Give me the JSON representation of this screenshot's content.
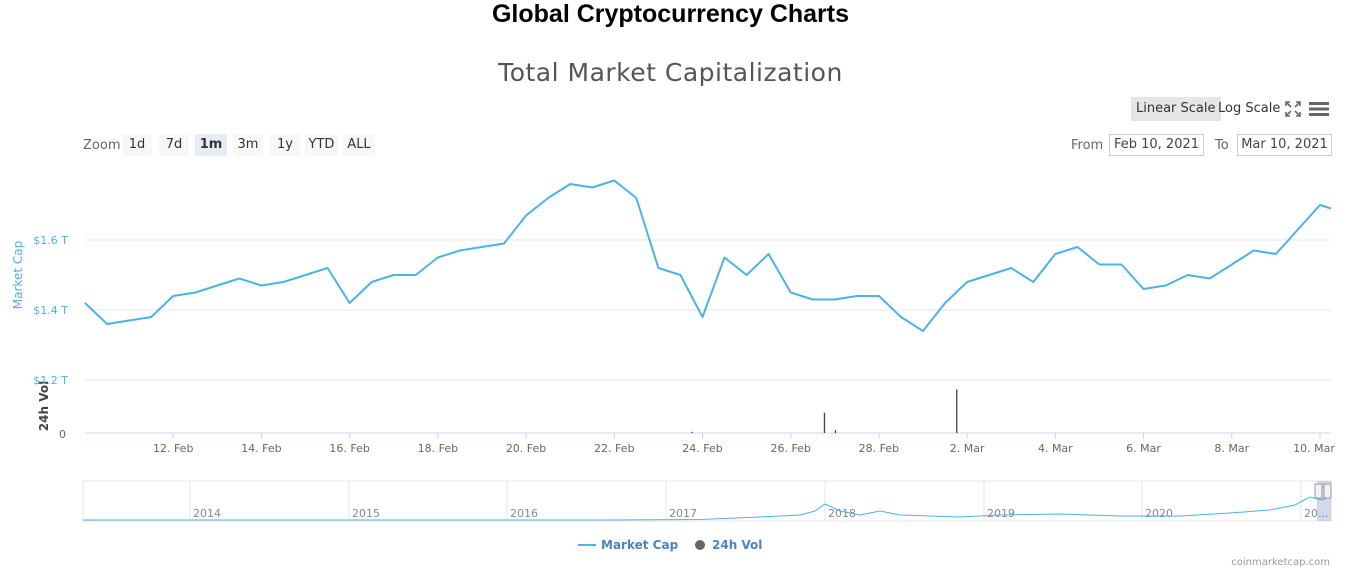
{
  "page_title": "Global Cryptocurrency Charts",
  "scale_buttons": {
    "linear": "Linear Scale",
    "log": "Log Scale",
    "active": "linear"
  },
  "zoom": {
    "label": "Zoom",
    "options": [
      "1d",
      "7d",
      "1m",
      "3m",
      "1y",
      "YTD",
      "ALL"
    ],
    "selected": "1m"
  },
  "range": {
    "from_label": "From",
    "from_value": "Feb 10, 2021",
    "to_label": "To",
    "to_value": "Mar 10, 2021"
  },
  "credit": "coinmarketcap.com",
  "colors": {
    "market_cap": "#4bb3e6",
    "volume": "#555555",
    "navigator": "#4bb3e6"
  },
  "icons": [
    "fullscreen-icon",
    "menu-icon"
  ],
  "chart_data": {
    "type": "line",
    "title": "Total Market Capitalization",
    "y_axis": {
      "label": "Market Cap",
      "ticks": [
        "$1.2 T",
        "$1.4 T",
        "$1.6 T"
      ],
      "tick_values": [
        1.2,
        1.4,
        1.6
      ],
      "range": [
        1.2,
        1.8
      ],
      "unit": "trillion USD"
    },
    "volume_axis": {
      "label": "24h Vol",
      "ticks": [
        "0"
      ]
    },
    "x_axis": {
      "ticks": [
        "12. Feb",
        "14. Feb",
        "16. Feb",
        "18. Feb",
        "20. Feb",
        "22. Feb",
        "24. Feb",
        "26. Feb",
        "28. Feb",
        "2. Mar",
        "4. Mar",
        "6. Mar",
        "8. Mar",
        "10. Mar"
      ],
      "range": [
        "2021-02-10",
        "2021-03-10"
      ]
    },
    "series": [
      {
        "name": "Market Cap",
        "x": [
          "2021-02-10",
          "2021-02-10T12",
          "2021-02-11",
          "2021-02-11T12",
          "2021-02-12",
          "2021-02-12T12",
          "2021-02-13",
          "2021-02-13T12",
          "2021-02-14",
          "2021-02-14T12",
          "2021-02-15",
          "2021-02-15T12",
          "2021-02-16",
          "2021-02-16T12",
          "2021-02-17",
          "2021-02-17T12",
          "2021-02-18",
          "2021-02-18T12",
          "2021-02-19",
          "2021-02-19T12",
          "2021-02-20",
          "2021-02-20T12",
          "2021-02-21",
          "2021-02-21T12",
          "2021-02-22",
          "2021-02-22T12",
          "2021-02-23",
          "2021-02-23T12",
          "2021-02-24",
          "2021-02-24T12",
          "2021-02-25",
          "2021-02-25T12",
          "2021-02-26",
          "2021-02-26T12",
          "2021-02-27",
          "2021-02-27T12",
          "2021-02-28",
          "2021-02-28T12",
          "2021-03-01",
          "2021-03-01T12",
          "2021-03-02",
          "2021-03-02T12",
          "2021-03-03",
          "2021-03-03T12",
          "2021-03-04",
          "2021-03-04T12",
          "2021-03-05",
          "2021-03-05T12",
          "2021-03-06",
          "2021-03-06T12",
          "2021-03-07",
          "2021-03-07T12",
          "2021-03-08",
          "2021-03-08T12",
          "2021-03-09",
          "2021-03-09T12",
          "2021-03-10",
          "2021-03-10T06"
        ],
        "values": [
          1.42,
          1.36,
          1.37,
          1.38,
          1.44,
          1.45,
          1.47,
          1.49,
          1.47,
          1.48,
          1.5,
          1.52,
          1.42,
          1.48,
          1.5,
          1.5,
          1.55,
          1.57,
          1.58,
          1.59,
          1.67,
          1.72,
          1.76,
          1.75,
          1.77,
          1.72,
          1.52,
          1.5,
          1.38,
          1.55,
          1.5,
          1.56,
          1.45,
          1.43,
          1.43,
          1.44,
          1.44,
          1.38,
          1.34,
          1.42,
          1.48,
          1.5,
          1.52,
          1.48,
          1.56,
          1.58,
          1.53,
          1.53,
          1.46,
          1.47,
          1.5,
          1.49,
          1.53,
          1.57,
          1.56,
          1.63,
          1.7,
          1.69
        ]
      },
      {
        "name": "24h Vol",
        "x": [
          "2021-02-23T18",
          "2021-02-26T18",
          "2021-02-27",
          "2021-03-01T18"
        ],
        "values": [
          0.02,
          0.35,
          0.05,
          0.75
        ]
      }
    ],
    "navigator": {
      "ticks": [
        "2014",
        "2015",
        "2016",
        "2017",
        "2018",
        "2019",
        "2020",
        "20..."
      ]
    },
    "legend": {
      "position": "bottom-center",
      "items": [
        "Market Cap",
        "24h Vol"
      ]
    },
    "grid": true
  }
}
